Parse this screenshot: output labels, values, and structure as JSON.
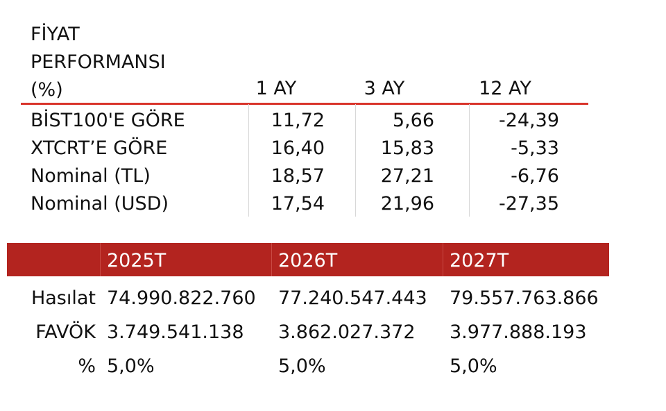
{
  "performance": {
    "title_lines": [
      "FİYAT",
      "PERFORMANSI",
      "(%)"
    ],
    "headers": [
      "1 AY",
      "3 AY",
      "12 AY"
    ],
    "rows": [
      {
        "label": "BİST100'E GÖRE",
        "m1": "11,72",
        "m3": "5,66",
        "m12": "-24,39"
      },
      {
        "label": "XTCRT’E GÖRE",
        "m1": "16,40",
        "m3": "15,83",
        "m12": "-5,33"
      },
      {
        "label": "Nominal (TL)",
        "m1": "18,57",
        "m3": "27,21",
        "m12": "-6,76"
      },
      {
        "label": "Nominal (USD)",
        "m1": "17,54",
        "m3": "21,96",
        "m12": "-27,35"
      }
    ],
    "accent_color": "#d9342b"
  },
  "forecast": {
    "years": [
      "2025T",
      "2026T",
      "2027T"
    ],
    "rows": [
      {
        "label": "Hasılat",
        "values": [
          "74.990.822.760",
          "77.240.547.443",
          "79.557.763.866"
        ]
      },
      {
        "label": "FAVÖK",
        "values": [
          "3.749.541.138",
          "3.862.027.372",
          "3.977.888.193"
        ]
      },
      {
        "label": "%",
        "values": [
          "5,0%",
          "5,0%",
          "5,0%"
        ]
      }
    ],
    "header_color": "#b3241f"
  }
}
